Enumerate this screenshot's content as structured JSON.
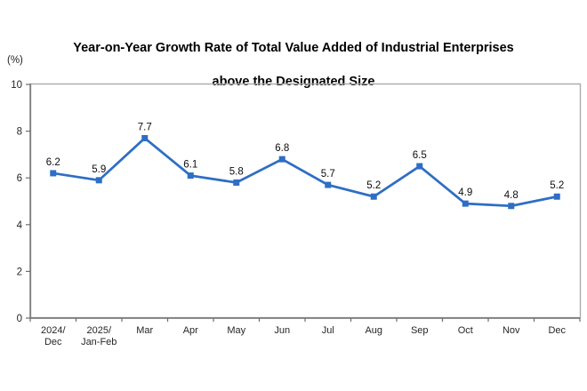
{
  "title_lines": [
    "Year-on-Year Growth Rate of Total Value Added of Industrial Enterprises",
    "above the Designated Size"
  ],
  "chart_data": {
    "type": "line",
    "title": "Year-on-Year Growth Rate of Total Value Added of Industrial Enterprises above the Designated Size",
    "unit_label": "(%)",
    "categories": [
      "2024/\nDec",
      "2025/\nJan-Feb",
      "Mar",
      "Apr",
      "May",
      "Jun",
      "Jul",
      "Aug",
      "Sep",
      "Oct",
      "Nov",
      "Dec"
    ],
    "values": [
      6.2,
      5.9,
      7.7,
      6.1,
      5.8,
      6.8,
      5.7,
      5.2,
      6.5,
      4.9,
      4.8,
      5.2
    ],
    "data_labels": [
      "6.2",
      "5.9",
      "7.7",
      "6.1",
      "5.8",
      "6.8",
      "5.7",
      "5.2",
      "6.5",
      "4.9",
      "4.8",
      "5.2"
    ],
    "xlabel": "",
    "ylabel": "(%)",
    "ylim": [
      0,
      10
    ],
    "yticks": [
      0,
      2,
      4,
      6,
      8,
      10
    ],
    "grid": false,
    "legend": false,
    "marker": "square",
    "colors": {
      "series": "#2E6EC4",
      "plot_border": "#ABABAB",
      "axis": "#6E6E6E",
      "tick": "#6E6E6E",
      "text": "#262626"
    }
  }
}
